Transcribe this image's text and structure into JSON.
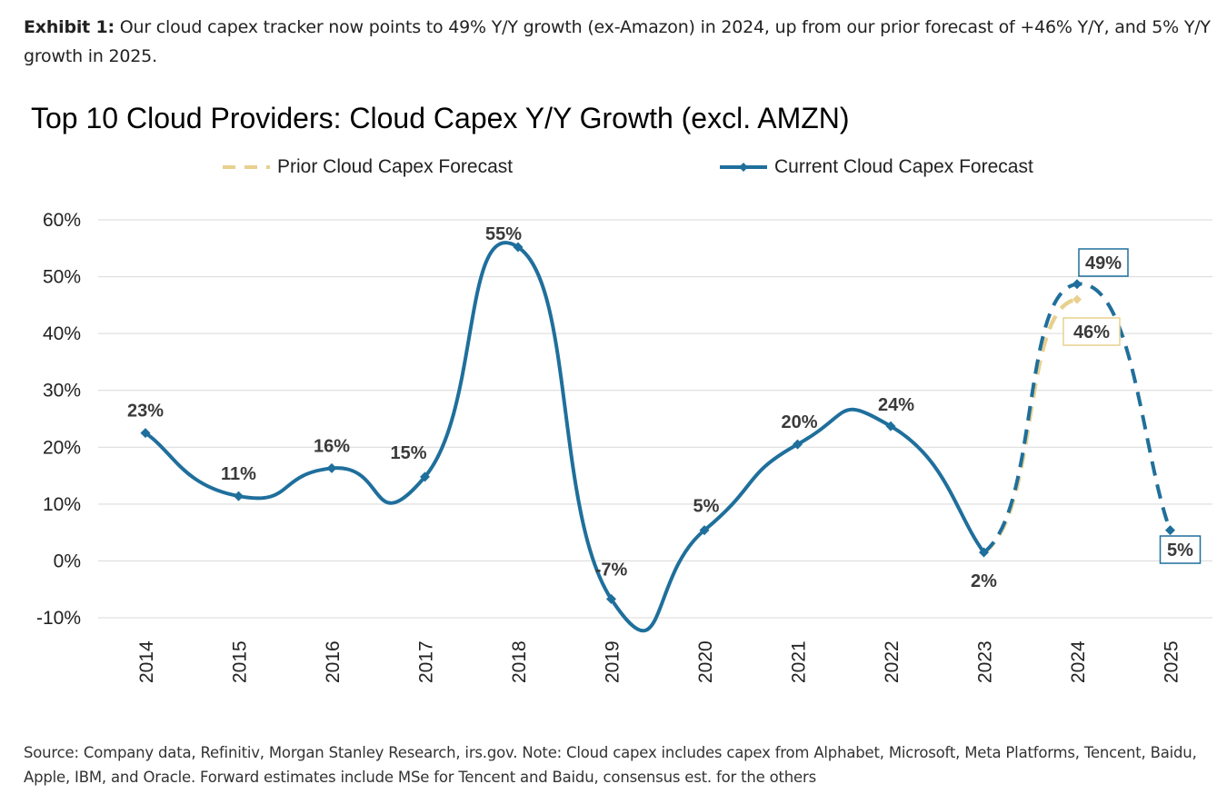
{
  "exhibit": {
    "label": "Exhibit 1:",
    "text": " Our cloud capex tracker now points to 49% Y/Y growth (ex-Amazon) in 2024, up from our prior forecast of +46% Y/Y, and 5% Y/Y growth in 2025."
  },
  "footnote": "Source: Company data, Refinitiv, Morgan Stanley Research, irs.gov. Note: Cloud capex includes capex from Alphabet, Microsoft, Meta Platforms, Tencent, Baidu, Apple, IBM, and Oracle. Forward estimates include MSe for Tencent and Baidu, consensus est. for the others",
  "chart_data": {
    "type": "line",
    "title": "Top 10 Cloud Providers: Cloud Capex Y/Y Growth (excl. AMZN)",
    "ylim": [
      -10,
      60
    ],
    "y_ticks": [
      -10,
      0,
      10,
      20,
      30,
      40,
      50,
      60
    ],
    "y_tick_labels": [
      "-10%",
      "0%",
      "10%",
      "20%",
      "30%",
      "40%",
      "50%",
      "60%"
    ],
    "grid": true,
    "legend_position": "top",
    "categories": [
      "2014",
      "2015",
      "2016",
      "2017",
      "2018",
      "2019",
      "2020",
      "2021",
      "2022",
      "2023",
      "2024",
      "2025"
    ],
    "series": [
      {
        "name": "Prior Cloud Capex Forecast",
        "color": "#E8D08E",
        "style": "dashed",
        "x": [
          "2023",
          "2024"
        ],
        "values": [
          1.5,
          46
        ],
        "labels": [
          null,
          "46%"
        ]
      },
      {
        "name": "Current Cloud Capex Forecast",
        "color": "#1F6F9C",
        "style": "solid-then-dashed",
        "x": [
          "2014",
          "2015",
          "2016",
          "2017",
          "2018",
          "2019",
          "2020",
          "2021",
          "2022",
          "2023",
          "2024",
          "2025"
        ],
        "values": [
          22.5,
          11.4,
          16.3,
          14.8,
          55.2,
          -6.7,
          5.4,
          20.5,
          23.7,
          1.5,
          48.7,
          5.4
        ],
        "labels": [
          "23%",
          "11%",
          "16%",
          "15%",
          "55%",
          "-7%",
          "5%",
          "20%",
          "24%",
          "2%",
          "49%",
          "5%"
        ],
        "dashed_from": "2023"
      }
    ]
  }
}
